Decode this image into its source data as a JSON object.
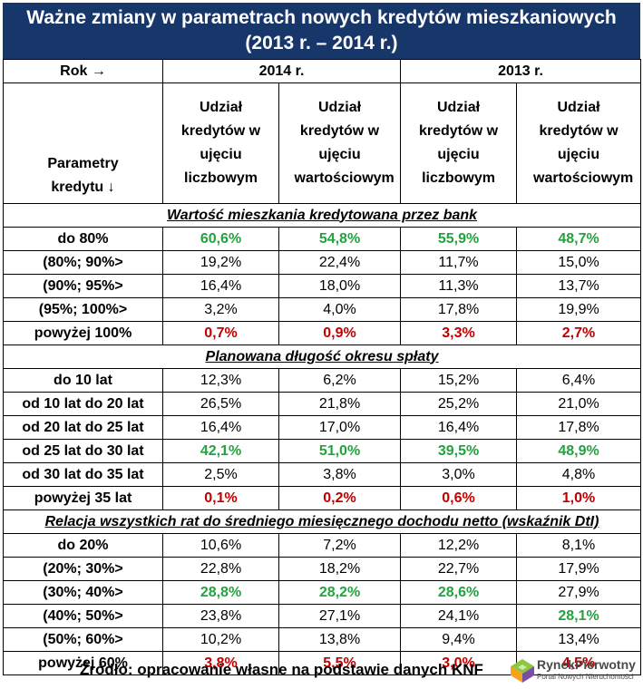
{
  "title": {
    "line1": "Ważne zmiany w parametrach nowych kredytów mieszkaniowych",
    "line2": "(2013 r. – 2014 r.)"
  },
  "header": {
    "rok_label": "Rok →",
    "year_2014": "2014 r.",
    "year_2013": "2013 r.",
    "param_label": "Parametry kredytu ↓",
    "col_count": "Udział kredytów w ujęciu liczbowym",
    "col_value": "Udział kredytów w ujęciu wartościowym"
  },
  "sections": [
    {
      "title": "Wartość mieszkania kredytowana przez bank",
      "rows": [
        {
          "label": "do 80%",
          "values": [
            "60,6%",
            "54,8%",
            "55,9%",
            "48,7%"
          ],
          "styles": [
            "g",
            "g",
            "g",
            "g"
          ]
        },
        {
          "label": "(80%; 90%>",
          "values": [
            "19,2%",
            "22,4%",
            "11,7%",
            "15,0%"
          ],
          "styles": [
            "",
            "",
            "",
            ""
          ]
        },
        {
          "label": "(90%; 95%>",
          "values": [
            "16,4%",
            "18,0%",
            "11,3%",
            "13,7%"
          ],
          "styles": [
            "",
            "",
            "",
            ""
          ]
        },
        {
          "label": "(95%; 100%>",
          "values": [
            "3,2%",
            "4,0%",
            "17,8%",
            "19,9%"
          ],
          "styles": [
            "",
            "",
            "",
            ""
          ]
        },
        {
          "label": "powyżej 100%",
          "values": [
            "0,7%",
            "0,9%",
            "3,3%",
            "2,7%"
          ],
          "styles": [
            "r",
            "r",
            "r",
            "r"
          ]
        }
      ]
    },
    {
      "title": "Planowana długość okresu spłaty",
      "rows": [
        {
          "label": "do 10 lat",
          "values": [
            "12,3%",
            "6,2%",
            "15,2%",
            "6,4%"
          ],
          "styles": [
            "",
            "",
            "",
            ""
          ]
        },
        {
          "label": "od 10 lat do 20 lat",
          "values": [
            "26,5%",
            "21,8%",
            "25,2%",
            "21,0%"
          ],
          "styles": [
            "",
            "",
            "",
            ""
          ]
        },
        {
          "label": "od 20 lat do 25 lat",
          "values": [
            "16,4%",
            "17,0%",
            "16,4%",
            "17,8%"
          ],
          "styles": [
            "",
            "",
            "",
            ""
          ]
        },
        {
          "label": "od 25 lat do 30 lat",
          "values": [
            "42,1%",
            "51,0%",
            "39,5%",
            "48,9%"
          ],
          "styles": [
            "g",
            "g",
            "g",
            "g"
          ]
        },
        {
          "label": "od 30 lat do 35 lat",
          "values": [
            "2,5%",
            "3,8%",
            "3,0%",
            "4,8%"
          ],
          "styles": [
            "",
            "",
            "",
            ""
          ]
        },
        {
          "label": "powyżej 35 lat",
          "values": [
            "0,1%",
            "0,2%",
            "0,6%",
            "1,0%"
          ],
          "styles": [
            "r",
            "r",
            "r",
            "r"
          ]
        }
      ]
    },
    {
      "title": "Relacja wszystkich rat do średniego miesięcznego dochodu netto (wskaźnik DtI)",
      "rows": [
        {
          "label": "do 20%",
          "values": [
            "10,6%",
            "7,2%",
            "12,2%",
            "8,1%"
          ],
          "styles": [
            "",
            "",
            "",
            ""
          ]
        },
        {
          "label": "(20%; 30%>",
          "values": [
            "22,8%",
            "18,2%",
            "22,7%",
            "17,9%"
          ],
          "styles": [
            "",
            "",
            "",
            ""
          ]
        },
        {
          "label": "(30%; 40%>",
          "values": [
            "28,8%",
            "28,2%",
            "28,6%",
            "27,9%"
          ],
          "styles": [
            "g",
            "g",
            "g",
            ""
          ]
        },
        {
          "label": "(40%; 50%>",
          "values": [
            "23,8%",
            "27,1%",
            "24,1%",
            "28,1%"
          ],
          "styles": [
            "",
            "",
            "",
            "g"
          ]
        },
        {
          "label": "(50%; 60%>",
          "values": [
            "10,2%",
            "13,8%",
            "9,4%",
            "13,4%"
          ],
          "styles": [
            "",
            "",
            "",
            ""
          ]
        },
        {
          "label": "powyżej 60%",
          "values": [
            "3,8%",
            "5,5%",
            "3,0%",
            "4,5%"
          ],
          "styles": [
            "r",
            "r",
            "r",
            "r"
          ]
        }
      ]
    }
  ],
  "footer": {
    "source": "Źródło: opracowanie własne na podstawie danych KNF",
    "logo_name": "RynekPierwotny",
    "logo_sub": "Portal Nowych Nieruchomości"
  },
  "colors": {
    "title_bg": "#17376a",
    "positive": "#22a33e",
    "negative": "#c00000"
  },
  "icons": {
    "logo": "rynekpierwotny-logo-icon"
  }
}
